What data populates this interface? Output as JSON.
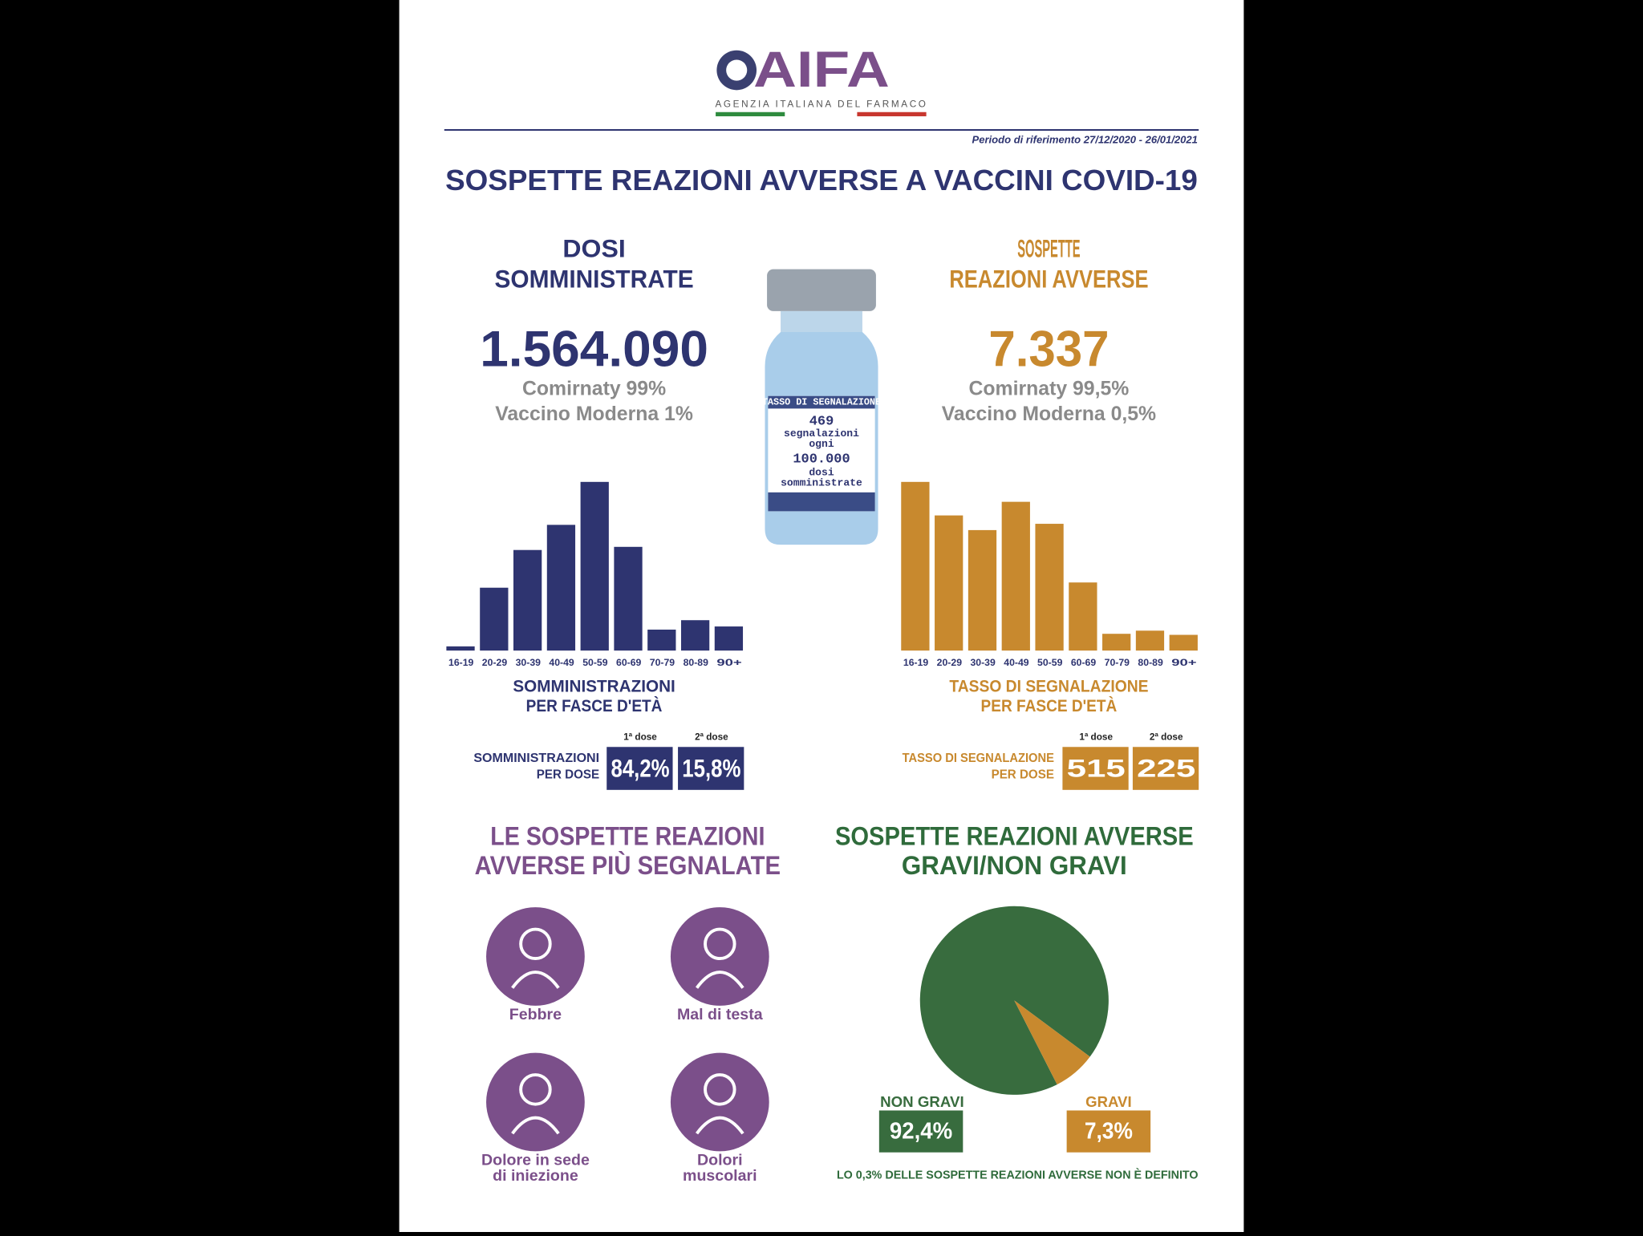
{
  "header": {
    "logo": "AIFA",
    "agency": "AGENZIA ITALIANA DEL FARMACO",
    "period": "Periodo di riferimento 27/12/2020 - 26/01/2021",
    "title": "SOSPETTE REAZIONI AVVERSE A VACCINI COVID-19"
  },
  "doses": {
    "heading": [
      "DOSI",
      "SOMMINISTRATE"
    ],
    "total": "1.564.090",
    "lines": [
      "Comirnaty 99%",
      "Vaccino Moderna 1%"
    ]
  },
  "reactions": {
    "heading": [
      "SOSPETTE",
      "REAZIONI AVVERSE"
    ],
    "total": "7.337",
    "lines": [
      "Comirnaty 99,5%",
      "Vaccino Moderna 0,5%"
    ]
  },
  "vial": {
    "lines": [
      "TASSO DI SEGNALAZIONE",
      "469",
      "segnalazioni",
      "ogni",
      "100.000",
      "dosi",
      "somministrate"
    ]
  },
  "dose_split": [
    {
      "label": [
        "SOMMINISTRAZIONI",
        "PER DOSE"
      ],
      "headers": [
        "1ª dose",
        "2ª dose"
      ],
      "values": [
        "84,2%",
        "15,8%"
      ]
    },
    {
      "label": [
        "TASSO DI SEGNALAZIONE",
        "PER DOSE"
      ],
      "headers": [
        "1ª dose",
        "2ª dose"
      ],
      "values": [
        "515",
        "225"
      ]
    }
  ],
  "common": {
    "heading": [
      "LE SOSPETTE REAZIONI",
      "AVVERSE PIÙ SEGNALATE"
    ],
    "items": [
      [
        "Febbre"
      ],
      [
        "Mal di testa"
      ],
      [
        "Dolore in sede",
        "di iniezione"
      ],
      [
        "Dolori",
        "muscolari"
      ]
    ]
  },
  "chart_data": [
    {
      "type": "bar",
      "caption": [
        "SOMMINISTRAZIONI",
        "PER FASCE D'ETÀ"
      ],
      "categories": [
        "16-19",
        "20-29",
        "30-39",
        "40-49",
        "50-59",
        "60-69",
        "70-79",
        "80-89",
        "90+"
      ],
      "values": [
        4,
        60,
        96,
        120,
        161,
        99,
        20,
        29,
        23
      ],
      "color": "#2e3470"
    },
    {
      "type": "bar",
      "caption": [
        "TASSO DI SEGNALAZIONE",
        "PER FASCE D'ETÀ"
      ],
      "categories": [
        "16-19",
        "20-29",
        "30-39",
        "40-49",
        "50-59",
        "60-69",
        "70-79",
        "80-89",
        "90+"
      ],
      "values": [
        161,
        129,
        115,
        142,
        121,
        65,
        16,
        19,
        15
      ],
      "color": "#c8892e"
    },
    {
      "type": "pie",
      "title": [
        "SOSPETTE REAZIONI AVVERSE",
        "GRAVI/NON GRAVI"
      ],
      "categories": [
        "NON GRAVI",
        "GRAVI"
      ],
      "values": [
        92.4,
        7.3
      ],
      "value_labels": [
        "92,4%",
        "7,3%"
      ],
      "colors": [
        "#386c3e",
        "#c8892e"
      ],
      "note": "LO 0,3% DELLE SOSPETTE REAZIONI AVVERSE NON È DEFINITO"
    }
  ]
}
